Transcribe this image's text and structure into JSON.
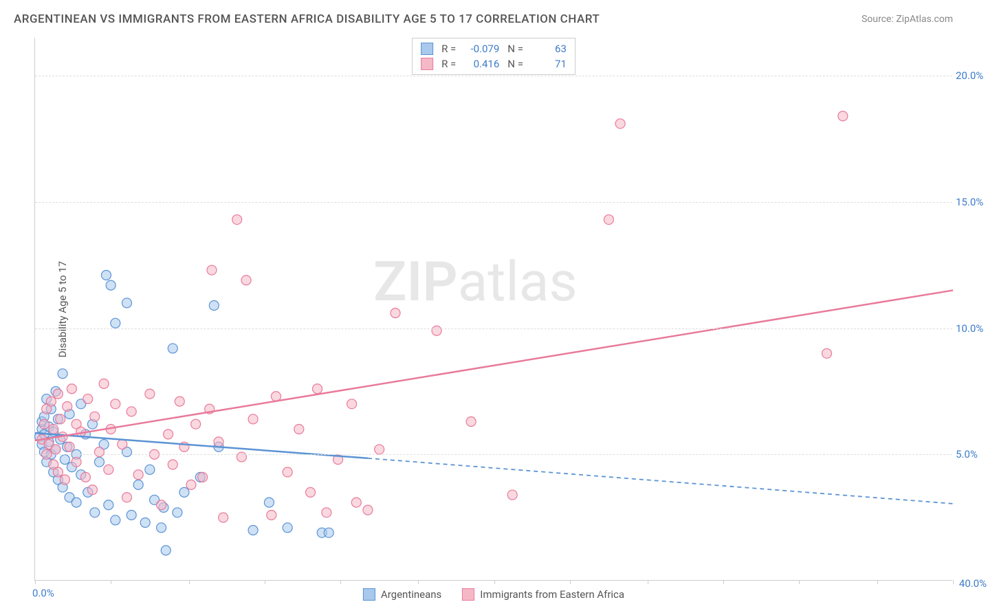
{
  "title": "ARGENTINEAN VS IMMIGRANTS FROM EASTERN AFRICA DISABILITY AGE 5 TO 17 CORRELATION CHART",
  "source": "Source: ZipAtlas.com",
  "y_axis_label": "Disability Age 5 to 17",
  "watermark_bold": "ZIP",
  "watermark_light": "atlas",
  "chart": {
    "type": "scatter",
    "xlim": [
      0,
      40
    ],
    "ylim": [
      0,
      21.5
    ],
    "x_ticks_major": [
      0,
      40
    ],
    "x_ticks_minor": [
      3.3,
      6.7,
      10,
      13.3,
      16.7,
      20,
      23.3,
      26.7,
      30,
      33.3,
      36.7
    ],
    "x_tick_labels": {
      "0": "0.0%",
      "40": "40.0%"
    },
    "y_ticks": [
      5,
      10,
      15,
      20
    ],
    "y_tick_labels": {
      "5": "5.0%",
      "10": "10.0%",
      "15": "15.0%",
      "20": "20.0%"
    },
    "background_color": "#ffffff",
    "grid_color": "#dddddd",
    "marker_radius": 7,
    "marker_opacity": 0.55,
    "tick_label_color": "#3d7cc9",
    "axis_label_color": "#555555",
    "series": [
      {
        "name": "Argentineans",
        "color_fill": "#a8c8ec",
        "color_stroke": "#5b93d4",
        "R": "-0.079",
        "N": "63",
        "points": [
          [
            0.2,
            5.7
          ],
          [
            0.3,
            6.0
          ],
          [
            0.3,
            5.4
          ],
          [
            0.3,
            6.3
          ],
          [
            0.4,
            5.1
          ],
          [
            0.4,
            5.8
          ],
          [
            0.4,
            6.5
          ],
          [
            0.5,
            7.2
          ],
          [
            0.5,
            4.7
          ],
          [
            0.6,
            5.5
          ],
          [
            0.6,
            6.1
          ],
          [
            0.7,
            6.8
          ],
          [
            0.7,
            5.0
          ],
          [
            0.8,
            4.3
          ],
          [
            0.8,
            5.9
          ],
          [
            0.9,
            7.5
          ],
          [
            0.9,
            5.2
          ],
          [
            1.0,
            4.0
          ],
          [
            1.0,
            6.4
          ],
          [
            1.1,
            5.6
          ],
          [
            1.2,
            3.7
          ],
          [
            1.2,
            8.2
          ],
          [
            1.3,
            4.8
          ],
          [
            1.4,
            5.3
          ],
          [
            1.5,
            3.3
          ],
          [
            1.5,
            6.6
          ],
          [
            1.6,
            4.5
          ],
          [
            1.8,
            5.0
          ],
          [
            1.8,
            3.1
          ],
          [
            2.0,
            7.0
          ],
          [
            2.0,
            4.2
          ],
          [
            2.2,
            5.8
          ],
          [
            2.3,
            3.5
          ],
          [
            2.5,
            6.2
          ],
          [
            2.6,
            2.7
          ],
          [
            2.8,
            4.7
          ],
          [
            3.0,
            5.4
          ],
          [
            3.1,
            12.1
          ],
          [
            3.2,
            3.0
          ],
          [
            3.3,
            11.7
          ],
          [
            3.5,
            2.4
          ],
          [
            3.5,
            10.2
          ],
          [
            4.0,
            11.0
          ],
          [
            4.0,
            5.1
          ],
          [
            4.2,
            2.6
          ],
          [
            4.5,
            3.8
          ],
          [
            4.8,
            2.3
          ],
          [
            5.0,
            4.4
          ],
          [
            5.2,
            3.2
          ],
          [
            5.5,
            2.1
          ],
          [
            5.6,
            2.9
          ],
          [
            5.7,
            1.2
          ],
          [
            6.0,
            9.2
          ],
          [
            6.2,
            2.7
          ],
          [
            6.5,
            3.5
          ],
          [
            7.2,
            4.1
          ],
          [
            7.8,
            10.9
          ],
          [
            8.0,
            5.3
          ],
          [
            9.5,
            2.0
          ],
          [
            10.2,
            3.1
          ],
          [
            11.0,
            2.1
          ],
          [
            12.5,
            1.9
          ],
          [
            12.8,
            1.9
          ]
        ],
        "trend": {
          "solid": {
            "x1": 0,
            "y1": 5.85,
            "x2": 14.5,
            "y2": 4.85
          },
          "dashed": {
            "x1": 14.5,
            "y1": 4.85,
            "x2": 40,
            "y2": 3.05
          }
        }
      },
      {
        "name": "Immigrants from Eastern Africa",
        "color_fill": "#f5b8c7",
        "color_stroke": "#e87a9a",
        "R": "0.416",
        "N": "71",
        "points": [
          [
            0.3,
            5.6
          ],
          [
            0.4,
            6.2
          ],
          [
            0.5,
            5.0
          ],
          [
            0.5,
            6.8
          ],
          [
            0.6,
            5.4
          ],
          [
            0.7,
            7.1
          ],
          [
            0.8,
            4.6
          ],
          [
            0.8,
            6.0
          ],
          [
            0.9,
            5.2
          ],
          [
            1.0,
            7.4
          ],
          [
            1.0,
            4.3
          ],
          [
            1.1,
            6.4
          ],
          [
            1.2,
            5.7
          ],
          [
            1.3,
            4.0
          ],
          [
            1.4,
            6.9
          ],
          [
            1.5,
            5.3
          ],
          [
            1.6,
            7.6
          ],
          [
            1.8,
            4.7
          ],
          [
            1.8,
            6.2
          ],
          [
            2.0,
            5.9
          ],
          [
            2.2,
            4.1
          ],
          [
            2.3,
            7.2
          ],
          [
            2.5,
            3.6
          ],
          [
            2.6,
            6.5
          ],
          [
            2.8,
            5.1
          ],
          [
            3.0,
            7.8
          ],
          [
            3.2,
            4.4
          ],
          [
            3.3,
            6.0
          ],
          [
            3.5,
            7.0
          ],
          [
            3.8,
            5.4
          ],
          [
            4.0,
            3.3
          ],
          [
            4.2,
            6.7
          ],
          [
            4.5,
            4.2
          ],
          [
            5.0,
            7.4
          ],
          [
            5.2,
            5.0
          ],
          [
            5.5,
            3.0
          ],
          [
            5.8,
            5.8
          ],
          [
            6.0,
            4.6
          ],
          [
            6.3,
            7.1
          ],
          [
            6.5,
            5.3
          ],
          [
            6.8,
            3.8
          ],
          [
            7.0,
            6.2
          ],
          [
            7.3,
            4.1
          ],
          [
            7.6,
            6.8
          ],
          [
            7.7,
            12.3
          ],
          [
            8.0,
            5.5
          ],
          [
            8.2,
            2.5
          ],
          [
            8.8,
            14.3
          ],
          [
            9.0,
            4.9
          ],
          [
            9.2,
            11.9
          ],
          [
            9.5,
            6.4
          ],
          [
            10.3,
            2.6
          ],
          [
            10.5,
            7.3
          ],
          [
            11.0,
            4.3
          ],
          [
            11.5,
            6.0
          ],
          [
            12.0,
            3.5
          ],
          [
            12.3,
            7.6
          ],
          [
            12.7,
            2.7
          ],
          [
            13.2,
            4.8
          ],
          [
            13.8,
            7.0
          ],
          [
            14.0,
            3.1
          ],
          [
            14.5,
            2.8
          ],
          [
            15.7,
            10.6
          ],
          [
            17.5,
            9.9
          ],
          [
            19.0,
            6.3
          ],
          [
            20.8,
            3.4
          ],
          [
            25.0,
            14.3
          ],
          [
            25.5,
            18.1
          ],
          [
            34.5,
            9.0
          ],
          [
            35.2,
            18.4
          ],
          [
            15.0,
            5.2
          ]
        ],
        "trend": {
          "solid": {
            "x1": 0,
            "y1": 5.55,
            "x2": 40,
            "y2": 11.5
          }
        }
      }
    ]
  },
  "legend_bottom": [
    {
      "label": "Argentineans"
    },
    {
      "label": "Immigrants from Eastern Africa"
    }
  ]
}
